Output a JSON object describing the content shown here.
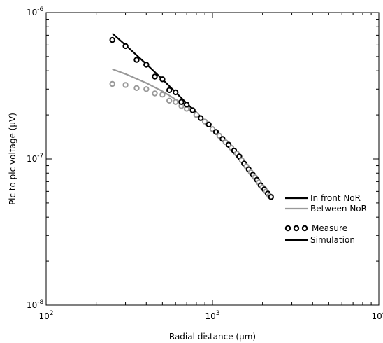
{
  "chart_data": {
    "type": "line",
    "x_scale": "log",
    "y_scale": "log",
    "xlabel": "Radial distance (µm)",
    "ylabel": "Pic to pic voltage (µV)",
    "xlim": [
      100,
      10000
    ],
    "ylim": [
      1e-08,
      1e-06
    ],
    "x_ticks": [
      {
        "value": 100,
        "base": "10",
        "exp": "2"
      },
      {
        "value": 1000,
        "base": "10",
        "exp": "3"
      },
      {
        "value": 10000,
        "base": "10",
        "exp": "4"
      }
    ],
    "y_ticks": [
      {
        "value": 1e-08,
        "base": "10",
        "exp": "-8"
      },
      {
        "value": 1e-07,
        "base": "10",
        "exp": "-7"
      },
      {
        "value": 1e-06,
        "base": "10",
        "exp": "-6"
      }
    ],
    "grid": false,
    "legend_position": "lower-right",
    "legend": {
      "color_entries": [
        {
          "label": "In front NoR",
          "color": "#000000"
        },
        {
          "label": "Between NoR",
          "color": "#999999"
        }
      ],
      "style_entries": [
        {
          "label": "Measure",
          "marker": "circle"
        },
        {
          "label": "Simulation",
          "marker": "line"
        }
      ]
    },
    "series": [
      {
        "group": "In front NoR",
        "style": "Measure",
        "color": "#000000",
        "x": [
          250,
          300,
          350,
          400,
          450,
          500,
          550,
          600,
          650,
          700
        ],
        "y": [
          6.5e-07,
          5.9e-07,
          4.75e-07,
          4.4e-07,
          3.65e-07,
          3.5e-07,
          2.95e-07,
          2.85e-07,
          2.45e-07,
          2.35e-07
        ]
      },
      {
        "group": "In front NoR",
        "style": "Simulation",
        "color": "#000000",
        "x": [
          250,
          300,
          400,
          500,
          600,
          700,
          800,
          1000,
          1200,
          1500,
          1800,
          2000,
          2250
        ],
        "y": [
          7.2e-07,
          6e-07,
          4.45e-07,
          3.5e-07,
          2.85e-07,
          2.4e-07,
          2.08e-07,
          1.6e-07,
          1.27e-07,
          9.5e-08,
          7.4e-08,
          6.5e-08,
          5.6e-08
        ]
      },
      {
        "group": "Between NoR",
        "style": "Measure",
        "color": "#999999",
        "x": [
          250,
          300,
          350,
          400,
          450,
          500,
          550,
          600,
          650,
          700
        ],
        "y": [
          3.25e-07,
          3.2e-07,
          3.05e-07,
          3e-07,
          2.8e-07,
          2.75e-07,
          2.5e-07,
          2.45e-07,
          2.3e-07,
          2.2e-07
        ]
      },
      {
        "group": "Between NoR",
        "style": "Simulation",
        "color": "#999999",
        "x": [
          250,
          300,
          400,
          500,
          600,
          700,
          800,
          1000,
          1200,
          1500,
          1800,
          2000,
          2250
        ],
        "y": [
          4.1e-07,
          3.8e-07,
          3.3e-07,
          2.9e-07,
          2.55e-07,
          2.3e-07,
          2.05e-07,
          1.6e-07,
          1.27e-07,
          9.5e-08,
          7.4e-08,
          6.5e-08,
          5.6e-08
        ]
      },
      {
        "group": "mixed",
        "style": "Measure",
        "color": "#000000",
        "alt_color": "#999999",
        "x": [
          760,
          800,
          850,
          900,
          950,
          1000,
          1050,
          1100,
          1150,
          1200,
          1250,
          1300,
          1350,
          1400,
          1450,
          1500,
          1550,
          1600,
          1650,
          1700,
          1750,
          1800,
          1850,
          1900,
          1950,
          2000,
          2050,
          2100,
          2150,
          2200,
          2250
        ],
        "y": [
          2.15e-07,
          2e-07,
          1.9e-07,
          1.8e-07,
          1.72e-07,
          1.6e-07,
          1.53e-07,
          1.44e-07,
          1.37e-07,
          1.3e-07,
          1.25e-07,
          1.19e-07,
          1.14e-07,
          1.09e-07,
          1.04e-07,
          9.8e-08,
          9.3e-08,
          8.9e-08,
          8.5e-08,
          8.1e-08,
          7.8e-08,
          7.5e-08,
          7.2e-08,
          6.9e-08,
          6.6e-08,
          6.4e-08,
          6.2e-08,
          6e-08,
          5.8e-08,
          5.6e-08,
          5.5e-08
        ]
      }
    ]
  }
}
